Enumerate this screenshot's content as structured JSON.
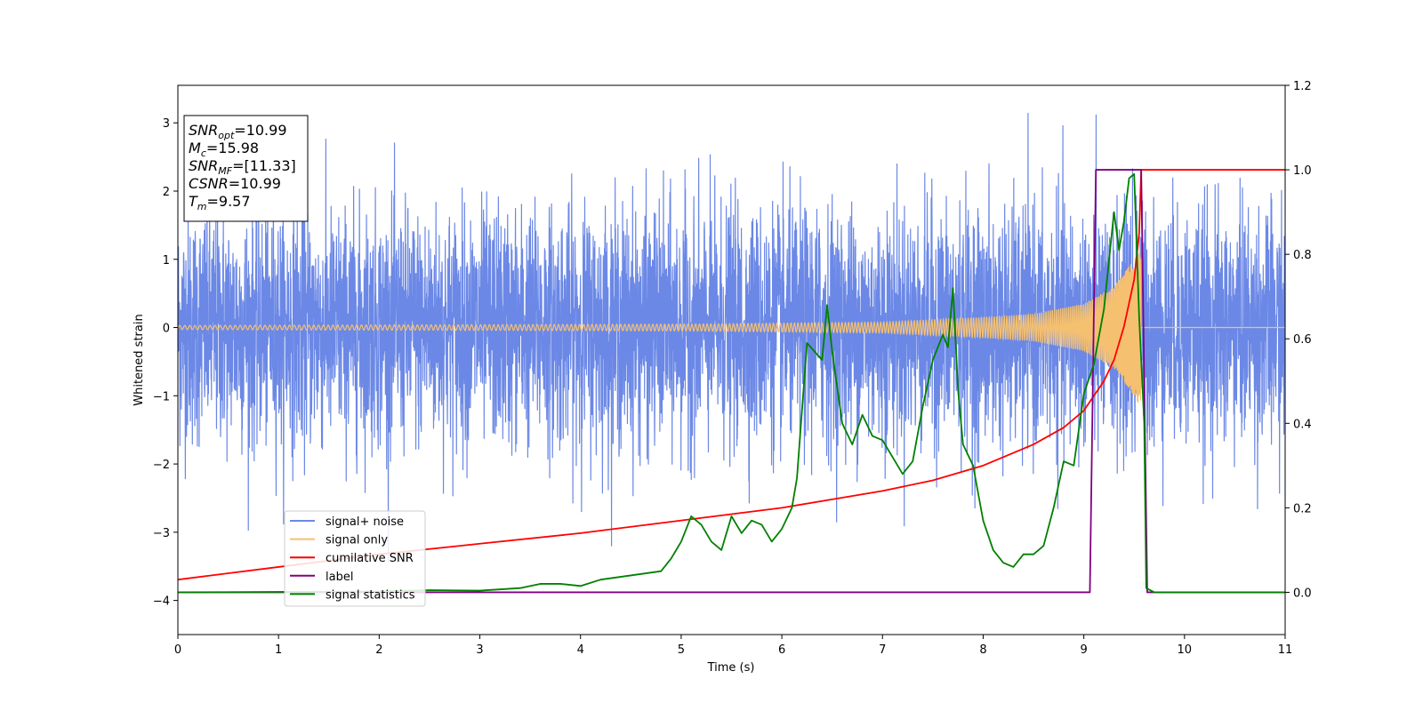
{
  "chart_data": {
    "type": "line",
    "title": "",
    "xlabel": "Time (s)",
    "ylabel": "Whitened strain",
    "y2label": "",
    "xlim": [
      0,
      11
    ],
    "ylim": [
      -4.5,
      3.55
    ],
    "y2lim": [
      -0.1,
      1.2
    ],
    "x_ticks": [
      0,
      1,
      2,
      3,
      4,
      5,
      6,
      7,
      8,
      9,
      10,
      11
    ],
    "y_ticks": [
      -4,
      -3,
      -2,
      -1,
      0,
      1,
      2,
      3
    ],
    "y2_ticks": [
      0.0,
      0.2,
      0.4,
      0.6,
      0.8,
      1.0,
      1.2
    ],
    "grid": false,
    "legend_position": "lower-left",
    "colors": {
      "noise": "#6b88e6",
      "signal": "#f5c070",
      "csnr": "#ff0000",
      "label": "#800080",
      "stats": "#008000"
    },
    "legend": [
      {
        "key": "noise",
        "label": "signal+ noise"
      },
      {
        "key": "signal",
        "label": "signal only"
      },
      {
        "key": "csnr",
        "label": "cumilative SNR"
      },
      {
        "key": "label",
        "label": "label"
      },
      {
        "key": "stats",
        "label": "signal statistics"
      }
    ],
    "annotation": [
      {
        "sym": "SNR",
        "sub": "opt",
        "value": "=10.99"
      },
      {
        "sym": "M",
        "sub": "c",
        "value": "=15.98"
      },
      {
        "sym": "SNR",
        "sub": "MF",
        "value": "=[11.33]"
      },
      {
        "sym": "CSNR",
        "sub": "",
        "value": "=10.99"
      },
      {
        "sym": "T",
        "sub": "m",
        "value": "=9.57"
      }
    ],
    "series": [
      {
        "key": "noise",
        "axis": "left",
        "description_free": true,
        "envelope": {
          "x": [
            0,
            11
          ],
          "typical_peak": [
            2.3,
            -2.2
          ],
          "max": 3.2,
          "min": -4.15
        }
      },
      {
        "key": "signal",
        "axis": "left",
        "chirp_end_time": 9.57,
        "amplitude": {
          "x": [
            0,
            5,
            7,
            8,
            8.5,
            9,
            9.3,
            9.5,
            9.57
          ],
          "y": [
            0.03,
            0.05,
            0.08,
            0.15,
            0.2,
            0.35,
            0.6,
            1.0,
            1.2
          ]
        }
      },
      {
        "key": "csnr",
        "axis": "right",
        "x": [
          0,
          1,
          2,
          3,
          4,
          5,
          6,
          6.5,
          7,
          7.5,
          8,
          8.5,
          8.8,
          9.0,
          9.2,
          9.3,
          9.4,
          9.5,
          9.55,
          9.57,
          11
        ],
        "y": [
          0.03,
          0.06,
          0.09,
          0.115,
          0.14,
          0.17,
          0.2,
          0.22,
          0.24,
          0.265,
          0.3,
          0.35,
          0.39,
          0.43,
          0.5,
          0.55,
          0.63,
          0.74,
          0.85,
          1.0,
          1.0
        ]
      },
      {
        "key": "label",
        "axis": "right",
        "x": [
          0,
          9.06,
          9.12,
          9.57,
          9.63,
          11
        ],
        "y": [
          0,
          0,
          1,
          1,
          0,
          0
        ]
      },
      {
        "key": "stats",
        "axis": "right",
        "x": [
          0,
          2.0,
          2.5,
          3.0,
          3.4,
          3.6,
          3.8,
          4.0,
          4.2,
          4.5,
          4.8,
          4.9,
          5.0,
          5.1,
          5.2,
          5.3,
          5.4,
          5.5,
          5.6,
          5.7,
          5.8,
          5.9,
          6.0,
          6.1,
          6.15,
          6.25,
          6.4,
          6.45,
          6.5,
          6.6,
          6.7,
          6.8,
          6.9,
          7.0,
          7.1,
          7.2,
          7.3,
          7.4,
          7.5,
          7.6,
          7.65,
          7.7,
          7.75,
          7.8,
          7.9,
          8.0,
          8.1,
          8.2,
          8.3,
          8.4,
          8.5,
          8.6,
          8.7,
          8.8,
          8.9,
          9.0,
          9.1,
          9.2,
          9.3,
          9.35,
          9.4,
          9.45,
          9.5,
          9.55,
          9.6,
          9.62,
          9.7,
          11
        ],
        "y": [
          0,
          0.002,
          0.005,
          0.004,
          0.01,
          0.02,
          0.02,
          0.015,
          0.03,
          0.04,
          0.05,
          0.08,
          0.12,
          0.18,
          0.16,
          0.12,
          0.1,
          0.18,
          0.14,
          0.17,
          0.16,
          0.12,
          0.15,
          0.2,
          0.27,
          0.59,
          0.55,
          0.68,
          0.57,
          0.4,
          0.35,
          0.42,
          0.37,
          0.36,
          0.32,
          0.28,
          0.31,
          0.44,
          0.55,
          0.61,
          0.58,
          0.72,
          0.48,
          0.35,
          0.3,
          0.17,
          0.1,
          0.07,
          0.06,
          0.09,
          0.09,
          0.11,
          0.2,
          0.31,
          0.3,
          0.47,
          0.54,
          0.67,
          0.9,
          0.81,
          0.88,
          0.98,
          0.99,
          0.65,
          0.4,
          0.01,
          0.0,
          0.0
        ]
      }
    ]
  }
}
